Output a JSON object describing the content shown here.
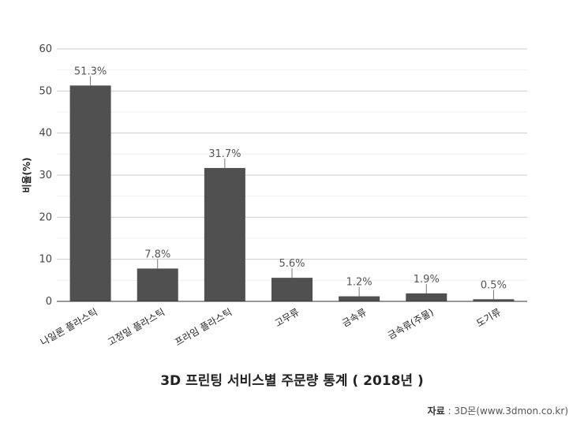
{
  "chart_data": {
    "type": "bar",
    "title": "3D 프린팅 서비스별 주문량 통계 ( 2018년 )",
    "xlabel": "",
    "ylabel": "비율(%)",
    "ylim": [
      0,
      60
    ],
    "yticks": [
      0,
      10,
      20,
      30,
      40,
      50,
      60
    ],
    "categories": [
      "나일론 플라스틱",
      "고정밀 플라스틱",
      "프라임 플라스틱",
      "고무류",
      "금속류",
      "금속류(주물)",
      "도기류"
    ],
    "values": [
      51.3,
      7.8,
      31.7,
      5.6,
      1.2,
      1.9,
      0.5
    ],
    "data_labels": [
      "51.3%",
      "7.8%",
      "31.7%",
      "5.6%",
      "1.2%",
      "1.9%",
      "0.5%"
    ],
    "bar_color": "#505050",
    "grid": true,
    "legend": "none"
  },
  "source": {
    "label": "자료",
    "text": ": 3D몬(www.3dmon.co.kr)"
  }
}
